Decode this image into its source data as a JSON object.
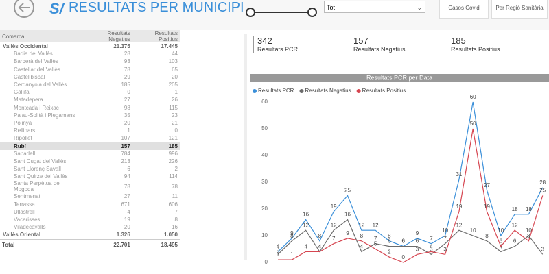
{
  "header": {
    "logo": "S/",
    "title": "RESULTATS PER MUNICIPI",
    "filter": "Tot",
    "buttons": [
      "Casos Covid",
      "Per Regió Sanitària"
    ]
  },
  "table": {
    "columns": [
      "Comarca",
      "Resultats Negatius",
      "Resultats Positius"
    ],
    "groups": [
      {
        "name": "Vallès Occidental",
        "negatius": "21.375",
        "positius": "17.445",
        "selected_row": 12,
        "rows": [
          [
            "Badia del Vallès",
            28,
            44
          ],
          [
            "Barberà del Vallès",
            93,
            103
          ],
          [
            "Castellar del Vallès",
            78,
            65
          ],
          [
            "Castellbisbal",
            29,
            20
          ],
          [
            "Cerdanyola del Vallès",
            185,
            205
          ],
          [
            "Gallifa",
            0,
            1
          ],
          [
            "Matadepera",
            27,
            26
          ],
          [
            "Montcada i Reixac",
            98,
            115
          ],
          [
            "Palau-Solità i Plegamans",
            35,
            23
          ],
          [
            "Polinyà",
            20,
            21
          ],
          [
            "Rellinars",
            1,
            0
          ],
          [
            "Ripollet",
            107,
            121
          ],
          [
            "Rubí",
            157,
            185
          ],
          [
            "Sabadell",
            784,
            996
          ],
          [
            "Sant Cugat del Vallès",
            213,
            226
          ],
          [
            "Sant Llorenç Savall",
            6,
            2
          ],
          [
            "Sant Quirze del Vallès",
            94,
            114
          ],
          [
            "Santa Perpètua de Mogoda",
            78,
            78
          ],
          [
            "Sentmenat",
            27,
            11
          ],
          [
            "Terrassa",
            671,
            606
          ],
          [
            "Ullastrell",
            4,
            7
          ],
          [
            "Vacarisses",
            19,
            8
          ],
          [
            "Viladecavalls",
            20,
            16
          ]
        ]
      },
      {
        "name": "Vallès Oriental",
        "negatius": "1.326",
        "positius": "1.050",
        "rows": []
      }
    ],
    "total": [
      "Total",
      "22.701",
      "18.495"
    ]
  },
  "kpis": [
    {
      "value": 342,
      "label": "Resultats PCR"
    },
    {
      "value": 157,
      "label": "Resultats Negatius"
    },
    {
      "value": 185,
      "label": "Resultats Positius"
    }
  ],
  "chart_data": {
    "type": "line",
    "title": "Resultats PCR per Data",
    "legend": "top-left",
    "grid": false,
    "categories": [
      null,
      null,
      null,
      null,
      null,
      null,
      null,
      null,
      null,
      null,
      null,
      null,
      null,
      null,
      null,
      null,
      null,
      null,
      null,
      null
    ],
    "ylim": [
      0,
      60
    ],
    "yticks": [
      0,
      10,
      20,
      30,
      40,
      50,
      60
    ],
    "series": [
      {
        "name": "Resultats PCR",
        "color": "#3a8fd9",
        "values": [
          4,
          9,
          16,
          8,
          19,
          25,
          12,
          12,
          8,
          6,
          9,
          7,
          10,
          31,
          60,
          27,
          10,
          18,
          18,
          28
        ]
      },
      {
        "name": "Resultats Negatius",
        "color": "#6b6b6b",
        "values": [
          3,
          8,
          12,
          4,
          12,
          16,
          4,
          7,
          6,
          6,
          6,
          3,
          7,
          12,
          10,
          8,
          4,
          6,
          10,
          3
        ]
      },
      {
        "name": "Resultats Positius",
        "color": "#d64550",
        "values": [
          1,
          1,
          4,
          4,
          7,
          9,
          8,
          5,
          2,
          0,
          3,
          4,
          3,
          19,
          50,
          19,
          6,
          12,
          8,
          25
        ]
      }
    ]
  }
}
